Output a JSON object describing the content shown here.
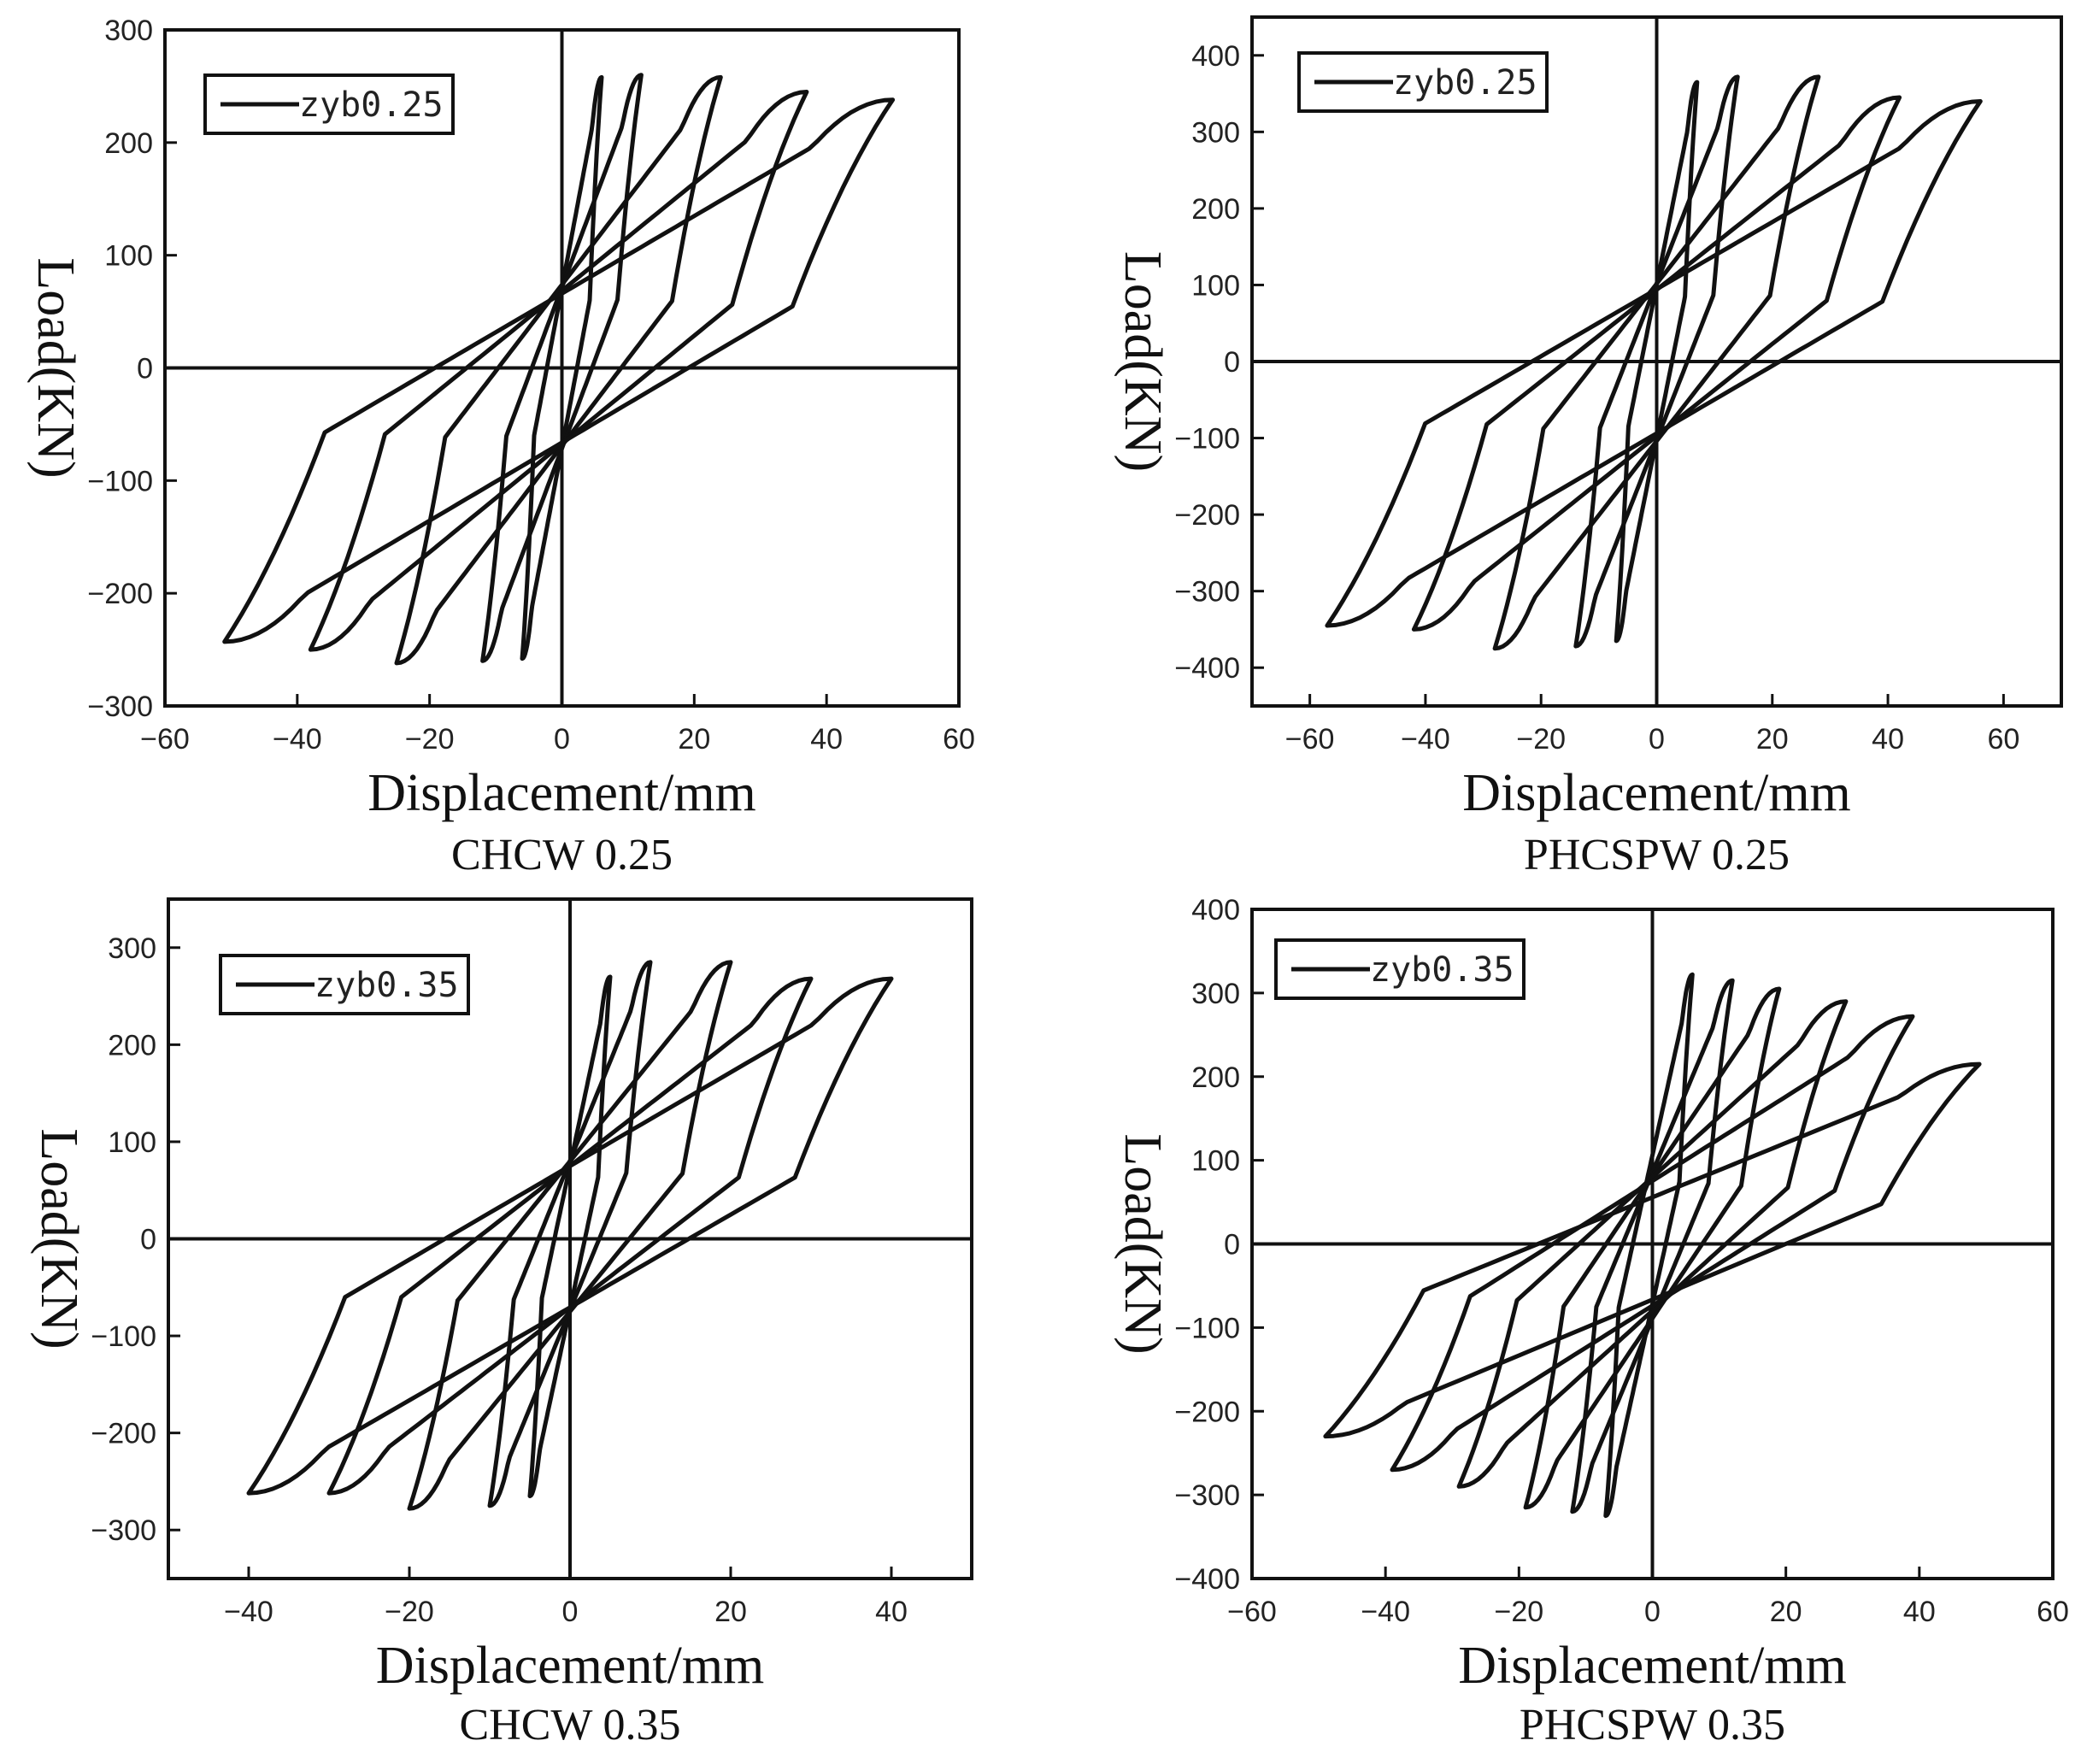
{
  "chart_data": [
    {
      "type": "line",
      "caption": "CHCW 0.25",
      "xlabel": "Displacement/mm",
      "ylabel": "Load(KN)",
      "xlim": [
        -60,
        60
      ],
      "ylim": [
        -300,
        300
      ],
      "xticks": [
        -60,
        -40,
        -20,
        0,
        20,
        40,
        60
      ],
      "yticks": [
        -300,
        -200,
        -100,
        0,
        100,
        200,
        300
      ],
      "legend": "zyb0.25",
      "legend_position": "top-left",
      "series": [
        {
          "name": "zyb0.25",
          "cycles": [
            {
              "dmax": 6,
              "pmax": 258,
              "dmin": -6,
              "pmin": -258,
              "zero_disp": 1
            },
            {
              "dmax": 12,
              "pmax": 260,
              "dmin": -12,
              "pmin": -260,
              "zero_disp": 4
            },
            {
              "dmax": 24,
              "pmax": 258,
              "dmin": -25,
              "pmin": -262,
              "zero_disp": 15
            },
            {
              "dmax": 37,
              "pmax": 245,
              "dmin": -38,
              "pmin": -250,
              "zero_disp": 24
            },
            {
              "dmax": 50,
              "pmax": 238,
              "dmin": -51,
              "pmin": -243,
              "zero_disp": 39
            }
          ]
        }
      ]
    },
    {
      "type": "line",
      "caption": "PHCSPW 0.25",
      "xlabel": "Displacement/mm",
      "ylabel": "Load(KN)",
      "xlim": [
        -70,
        70
      ],
      "ylim": [
        -450,
        450
      ],
      "xticks": [
        -60,
        -40,
        -20,
        0,
        20,
        40,
        60
      ],
      "yticks": [
        -400,
        -300,
        -200,
        -100,
        0,
        100,
        200,
        300,
        400
      ],
      "legend": "zyb0.25",
      "legend_position": "top-left",
      "series": [
        {
          "name": "zyb0.25",
          "cycles": [
            {
              "dmax": 7,
              "pmax": 365,
              "dmin": -7,
              "pmin": -365,
              "zero_disp": 1
            },
            {
              "dmax": 14,
              "pmax": 372,
              "dmin": -14,
              "pmin": -372,
              "zero_disp": 8
            },
            {
              "dmax": 28,
              "pmax": 372,
              "dmin": -28,
              "pmin": -375,
              "zero_disp": 17
            },
            {
              "dmax": 42,
              "pmax": 345,
              "dmin": -42,
              "pmin": -350,
              "zero_disp": 28
            },
            {
              "dmax": 56,
              "pmax": 340,
              "dmin": -57,
              "pmin": -345,
              "zero_disp": 42
            }
          ]
        }
      ]
    },
    {
      "type": "line",
      "caption": "CHCW 0.35",
      "xlabel": "Displacement/mm",
      "ylabel": "Load(KN)",
      "xlim": [
        -50,
        50
      ],
      "ylim": [
        -350,
        350
      ],
      "xticks": [
        -40,
        -20,
        0,
        20,
        40
      ],
      "yticks": [
        -300,
        -200,
        -100,
        0,
        100,
        200,
        300
      ],
      "legend": "zyb0.35",
      "legend_position": "top-left",
      "series": [
        {
          "name": "zyb0.35",
          "cycles": [
            {
              "dmax": 5,
              "pmax": 270,
              "dmin": -5,
              "pmin": -265,
              "zero_disp": 1
            },
            {
              "dmax": 10,
              "pmax": 285,
              "dmin": -10,
              "pmin": -275,
              "zero_disp": 5
            },
            {
              "dmax": 20,
              "pmax": 285,
              "dmin": -20,
              "pmin": -278,
              "zero_disp": 11
            },
            {
              "dmax": 30,
              "pmax": 268,
              "dmin": -30,
              "pmin": -262,
              "zero_disp": 22
            },
            {
              "dmax": 40,
              "pmax": 268,
              "dmin": -40,
              "pmin": -262,
              "zero_disp": 32
            }
          ]
        }
      ]
    },
    {
      "type": "line",
      "caption": "PHCSPW 0.35",
      "xlabel": "Displacement/mm",
      "ylabel": "Load(KN)",
      "xlim": [
        -60,
        60
      ],
      "ylim": [
        -400,
        400
      ],
      "xticks": [
        -60,
        -40,
        -20,
        0,
        20,
        40,
        60
      ],
      "yticks": [
        -400,
        -300,
        -200,
        -100,
        0,
        100,
        200,
        300,
        400
      ],
      "legend": "zyb0.35",
      "legend_position": "top-left",
      "series": [
        {
          "name": "zyb0.35",
          "cycles": [
            {
              "dmax": 6,
              "pmax": 322,
              "dmin": -7,
              "pmin": -325,
              "zero_disp": 1
            },
            {
              "dmax": 12,
              "pmax": 315,
              "dmin": -12,
              "pmin": -320,
              "zero_disp": 4
            },
            {
              "dmax": 19,
              "pmax": 305,
              "dmin": -19,
              "pmin": -315,
              "zero_disp": 12
            },
            {
              "dmax": 29,
              "pmax": 290,
              "dmin": -29,
              "pmin": -290,
              "zero_disp": 20
            },
            {
              "dmax": 39,
              "pmax": 272,
              "dmin": -39,
              "pmin": -270,
              "zero_disp": 28
            },
            {
              "dmax": 49,
              "pmax": 215,
              "dmin": -49,
              "pmin": -230,
              "zero_disp": 40
            }
          ]
        }
      ]
    }
  ]
}
